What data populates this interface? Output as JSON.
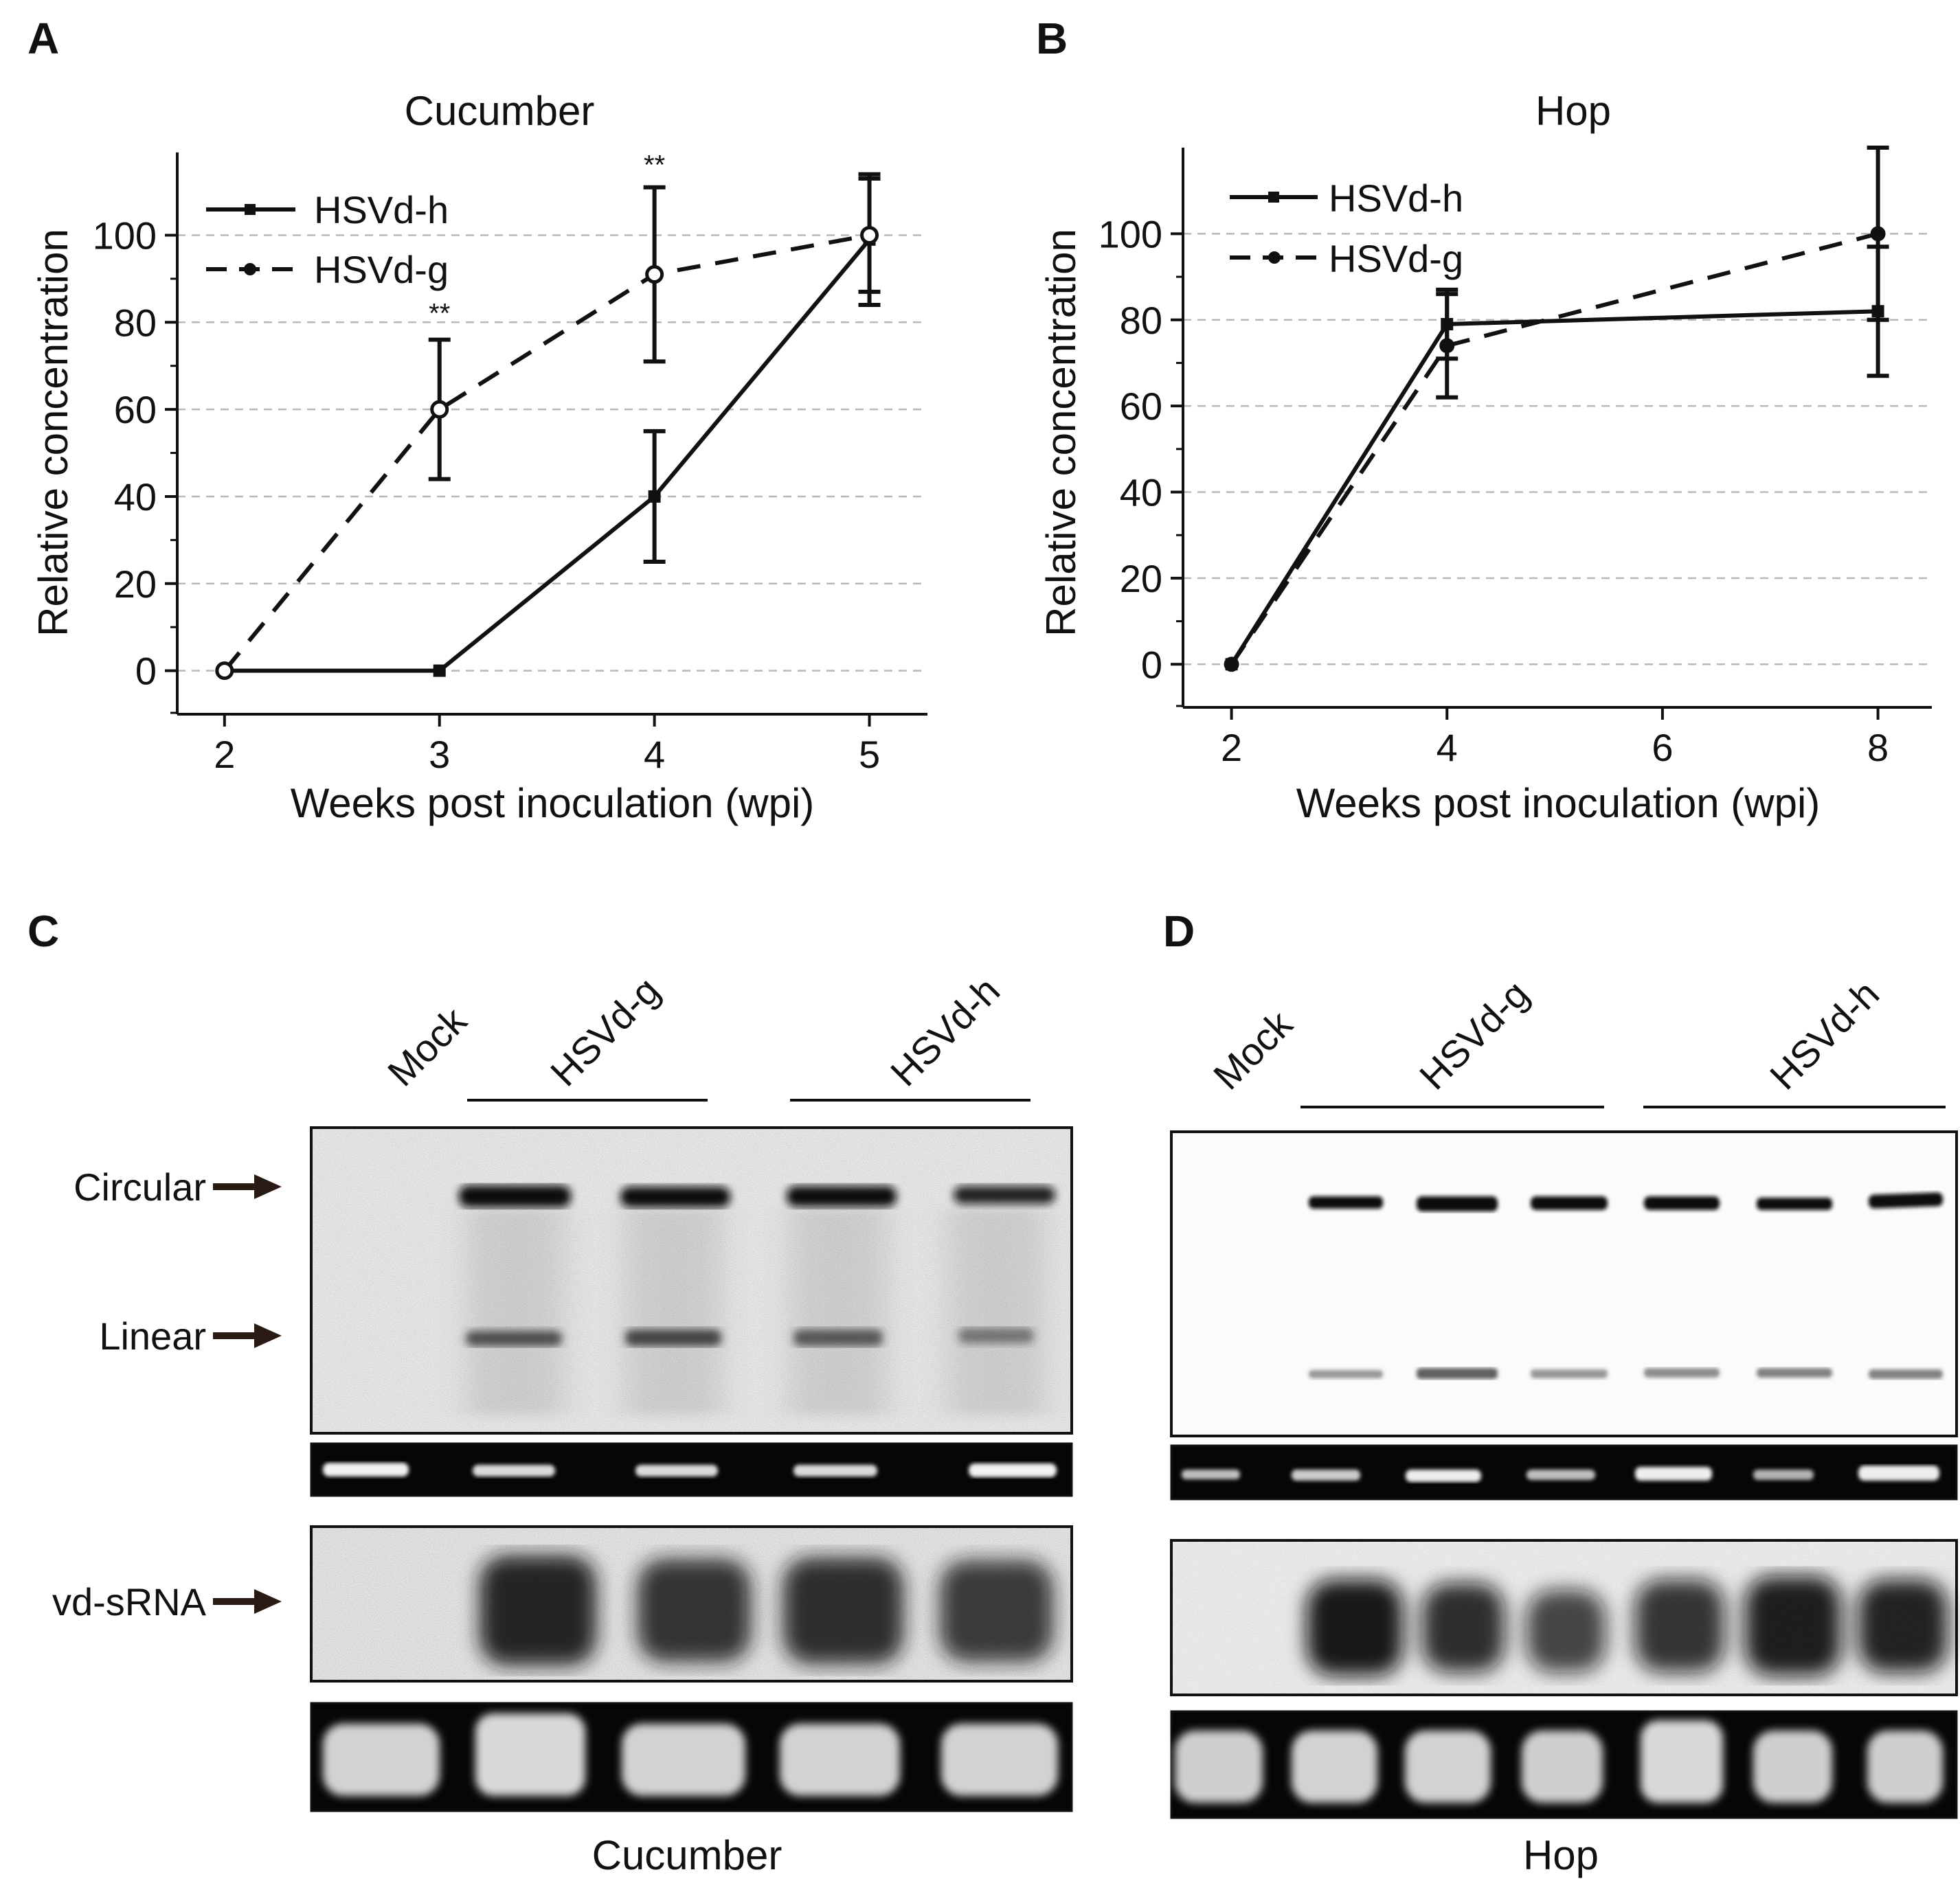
{
  "panel_letters": [
    "A",
    "B",
    "C",
    "D"
  ],
  "chart_data": [
    {
      "type": "line",
      "panel": "A",
      "title": "Cucumber",
      "xlabel": "Weeks post inoculation (wpi)",
      "ylabel": "Relative concentration",
      "x": [
        2,
        3,
        4,
        5
      ],
      "xticks": [
        "2",
        "3",
        "4",
        "5"
      ],
      "xlim": [
        1.78,
        5.27
      ],
      "yticks": [
        "0",
        "20",
        "40",
        "60",
        "80",
        "100"
      ],
      "ylim": [
        -10,
        119
      ],
      "grid": true,
      "legend_position": "top-left",
      "annotations": [
        {
          "text": "**",
          "x": 3,
          "y": 80
        },
        {
          "text": "**",
          "x": 4,
          "y": 114
        }
      ],
      "series": [
        {
          "name": "HSVd-h",
          "style": "solid",
          "marker": "square",
          "color": "#111111",
          "values": [
            0,
            0,
            40,
            99
          ],
          "errors": [
            0,
            0,
            15,
            15
          ]
        },
        {
          "name": "HSVd-g",
          "style": "dashed",
          "marker": "circle-open",
          "color": "#111111",
          "values": [
            0,
            60,
            91,
            100
          ],
          "errors": [
            0,
            16,
            20,
            13
          ]
        }
      ]
    },
    {
      "type": "line",
      "panel": "B",
      "title": "Hop",
      "xlabel": "Weeks post inoculation (wpi)",
      "ylabel": "Relative concentration",
      "x": [
        2,
        4,
        8
      ],
      "xticks": [
        "2",
        "4",
        "6",
        "8"
      ],
      "xtick_values": [
        2,
        4,
        6,
        8
      ],
      "xlim": [
        1.55,
        8.5
      ],
      "yticks": [
        "0",
        "20",
        "40",
        "60",
        "80",
        "100"
      ],
      "ylim": [
        -10,
        120
      ],
      "grid": true,
      "legend_position": "top-left",
      "annotations": [],
      "series": [
        {
          "name": "HSVd-h",
          "style": "solid",
          "marker": "square",
          "color": "#111111",
          "values": [
            0,
            79,
            82
          ],
          "errors": [
            0,
            8,
            15
          ]
        },
        {
          "name": "HSVd-g",
          "style": "dashed",
          "marker": "circle",
          "color": "#111111",
          "values": [
            0,
            74,
            100
          ],
          "errors": [
            0,
            12,
            20
          ]
        }
      ]
    },
    {
      "type": "blot",
      "panel": "C",
      "lane_labels": [
        "Mock",
        "HSVd-g",
        "HSVd-h"
      ],
      "band_labels": [
        "Circular",
        "Linear",
        "vd-sRNA"
      ],
      "caption": "Cucumber"
    },
    {
      "type": "blot",
      "panel": "D",
      "lane_labels": [
        "Mock",
        "HSVd-g",
        "HSVd-h"
      ],
      "caption": "Hop"
    }
  ]
}
